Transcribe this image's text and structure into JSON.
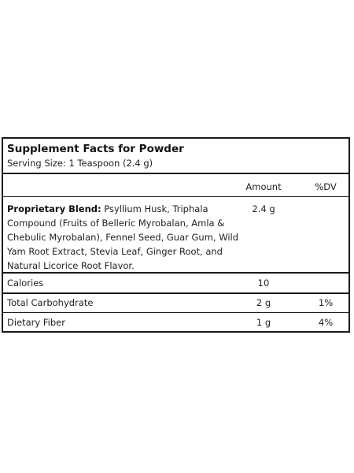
{
  "panel": {
    "title": "Supplement Facts for Powder",
    "serving_size": "Serving Size: 1 Teaspoon (2.4 g)"
  },
  "header": {
    "amount": "Amount",
    "dv": "%DV"
  },
  "blend": {
    "label": "Proprietary Blend:",
    "description": "Psyllium Husk, Triphala Compound (Fruits of Belleric Myrobalan, Amla & Chebulic Myrobalan), Fennel Seed, Guar Gum, Wild Yam Root Extract, Stevia Leaf, Ginger Root, and Natural Licorice Root Flavor.",
    "amount": "2.4 g",
    "dv": ""
  },
  "rows": [
    {
      "label": "Calories",
      "amount": "10",
      "dv": ""
    },
    {
      "label": "Total Carbohydrate",
      "amount": "2 g",
      "dv": "1%"
    },
    {
      "label": "Dietary Fiber",
      "amount": "1 g",
      "dv": "4%"
    }
  ]
}
